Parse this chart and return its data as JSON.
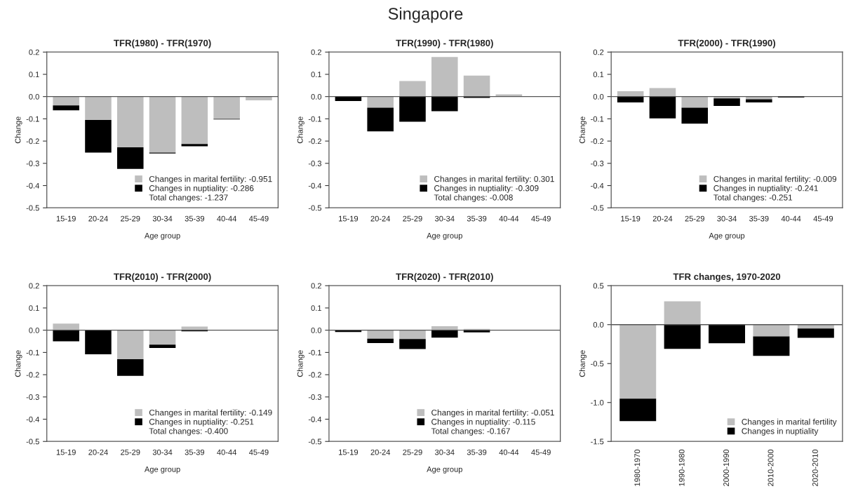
{
  "chart_data": [
    {
      "type": "bar",
      "title": "TFR(1980) - TFR(1970)",
      "xlabel": "Age group",
      "ylabel": "Change",
      "categories": [
        "15-19",
        "20-24",
        "25-29",
        "30-34",
        "35-39",
        "40-44",
        "45-49"
      ],
      "stacked": true,
      "ylim": [
        -0.5,
        0.2
      ],
      "yticks": [
        {
          "value": -0.5,
          "label": "-0.5"
        },
        {
          "value": -0.4,
          "label": "-0.4"
        },
        {
          "value": -0.3,
          "label": "-0.3"
        },
        {
          "value": -0.2,
          "label": "-0.2"
        },
        {
          "value": -0.1,
          "label": "-0.1"
        },
        {
          "value": 0,
          "label": "0.0"
        },
        {
          "value": 0.1,
          "label": "0.1"
        },
        {
          "value": 0.2,
          "label": "0.2"
        }
      ],
      "legend": "bottom right",
      "ref_lines": [
        {
          "axis": "y",
          "value": 0,
          "color": "#555555"
        }
      ],
      "annotations": [
        "Singapore",
        "Total changes: -1.237"
      ],
      "series": [
        {
          "name": "Changes in marital fertility: -0.951",
          "color": "#bebebe",
          "values": [
            -0.04,
            -0.105,
            -0.228,
            -0.252,
            -0.213,
            -0.1,
            -0.017
          ]
        },
        {
          "name": "Changes in nuptiality: -0.286",
          "color": "#000000",
          "values": [
            -0.022,
            -0.147,
            -0.097,
            -0.004,
            -0.01,
            -0.003,
            0
          ]
        }
      ]
    },
    {
      "type": "bar",
      "title": "TFR(1990) - TFR(1980)",
      "xlabel": "Age group",
      "ylabel": "Change",
      "categories": [
        "15-19",
        "20-24",
        "25-29",
        "30-34",
        "35-39",
        "40-44",
        "45-49"
      ],
      "stacked": true,
      "ylim": [
        -0.5,
        0.2
      ],
      "yticks": [
        {
          "value": -0.5,
          "label": "-0.5"
        },
        {
          "value": -0.4,
          "label": "-0.4"
        },
        {
          "value": -0.3,
          "label": "-0.3"
        },
        {
          "value": -0.2,
          "label": "-0.2"
        },
        {
          "value": -0.1,
          "label": "-0.1"
        },
        {
          "value": 0,
          "label": "0.0"
        },
        {
          "value": 0.1,
          "label": "0.1"
        },
        {
          "value": 0.2,
          "label": "0.2"
        }
      ],
      "legend": "bottom right",
      "ref_lines": [
        {
          "axis": "y",
          "value": 0,
          "color": "#555555"
        }
      ],
      "annotations": [
        "Total changes: -0.008"
      ],
      "series": [
        {
          "name": "Changes in marital fertility: 0.301",
          "color": "#bebebe",
          "values": [
            0,
            -0.05,
            0.07,
            0.178,
            0.094,
            0.01,
            0
          ]
        },
        {
          "name": "Changes in nuptiality: -0.309",
          "color": "#000000",
          "values": [
            -0.02,
            -0.106,
            -0.113,
            -0.066,
            -0.006,
            0,
            0
          ]
        }
      ]
    },
    {
      "type": "bar",
      "title": "TFR(2000) - TFR(1990)",
      "xlabel": "Age group",
      "ylabel": "Change",
      "categories": [
        "15-19",
        "20-24",
        "25-29",
        "30-34",
        "35-39",
        "40-44",
        "45-49"
      ],
      "stacked": true,
      "ylim": [
        -0.5,
        0.2
      ],
      "yticks": [
        {
          "value": -0.5,
          "label": "-0.5"
        },
        {
          "value": -0.4,
          "label": "-0.4"
        },
        {
          "value": -0.3,
          "label": "-0.3"
        },
        {
          "value": -0.2,
          "label": "-0.2"
        },
        {
          "value": -0.1,
          "label": "-0.1"
        },
        {
          "value": 0,
          "label": "0.0"
        },
        {
          "value": 0.1,
          "label": "0.1"
        },
        {
          "value": 0.2,
          "label": "0.2"
        }
      ],
      "legend": "bottom right",
      "ref_lines": [
        {
          "axis": "y",
          "value": 0,
          "color": "#555555"
        }
      ],
      "annotations": [
        "Total changes: -0.251"
      ],
      "series": [
        {
          "name": "Changes in marital fertility: -0.009",
          "color": "#bebebe",
          "values": [
            0.024,
            0.038,
            -0.05,
            -0.008,
            -0.012,
            null,
            0
          ]
        },
        {
          "name": "Changes in nuptiality: -0.241",
          "color": "#000000",
          "values": [
            -0.026,
            -0.098,
            -0.072,
            -0.034,
            -0.014,
            -0.004,
            0
          ]
        }
      ]
    },
    {
      "type": "bar",
      "title": "TFR(2010) - TFR(2000)",
      "xlabel": "Age group",
      "ylabel": "Change",
      "categories": [
        "15-19",
        "20-24",
        "25-29",
        "30-34",
        "35-39",
        "40-44",
        "45-49"
      ],
      "stacked": true,
      "ylim": [
        -0.5,
        0.2
      ],
      "yticks": [
        {
          "value": -0.5,
          "label": "-0.5"
        },
        {
          "value": -0.4,
          "label": "-0.4"
        },
        {
          "value": -0.3,
          "label": "-0.3"
        },
        {
          "value": -0.2,
          "label": "-0.2"
        },
        {
          "value": -0.1,
          "label": "-0.1"
        },
        {
          "value": 0,
          "label": "0.0"
        },
        {
          "value": 0.1,
          "label": "0.1"
        },
        {
          "value": 0.2,
          "label": "0.2"
        }
      ],
      "legend": "bottom right",
      "ref_lines": [
        {
          "axis": "y",
          "value": 0,
          "color": "#555555"
        }
      ],
      "annotations": [
        "Total changes: -0.400"
      ],
      "series": [
        {
          "name": "Changes in marital fertility: -0.149",
          "color": "#bebebe",
          "values": [
            0.03,
            0,
            -0.13,
            -0.065,
            0.016,
            0,
            0
          ]
        },
        {
          "name": "Changes in nuptiality: -0.251",
          "color": "#000000",
          "values": [
            -0.05,
            -0.108,
            -0.075,
            -0.015,
            -0.005,
            0,
            0
          ]
        }
      ]
    },
    {
      "type": "bar",
      "title": "TFR(2020) - TFR(2010)",
      "xlabel": "Age group",
      "ylabel": "Change",
      "categories": [
        "15-19",
        "20-24",
        "25-29",
        "30-34",
        "35-39",
        "40-44",
        "45-49"
      ],
      "stacked": true,
      "ylim": [
        -0.5,
        0.2
      ],
      "yticks": [
        {
          "value": -0.5,
          "label": "-0.5"
        },
        {
          "value": -0.4,
          "label": "-0.4"
        },
        {
          "value": -0.3,
          "label": "-0.3"
        },
        {
          "value": -0.2,
          "label": "-0.2"
        },
        {
          "value": -0.1,
          "label": "-0.1"
        },
        {
          "value": 0,
          "label": "0.0"
        },
        {
          "value": 0.1,
          "label": "0.1"
        },
        {
          "value": 0.2,
          "label": "0.2"
        }
      ],
      "legend": "bottom right",
      "ref_lines": [
        {
          "axis": "y",
          "value": 0,
          "color": "#555555"
        }
      ],
      "annotations": [
        "Total changes: -0.167"
      ],
      "series": [
        {
          "name": "Changes in marital fertility: -0.051",
          "color": "#bebebe",
          "values": [
            null,
            -0.038,
            -0.04,
            0.018,
            0.006,
            null,
            0
          ]
        },
        {
          "name": "Changes in nuptiality: -0.115",
          "color": "#000000",
          "values": [
            -0.008,
            -0.02,
            -0.045,
            -0.033,
            -0.01,
            0,
            0
          ]
        }
      ]
    },
    {
      "type": "bar",
      "title": "TFR changes, 1970-2020",
      "ylabel": "Change",
      "categories": [
        "1980-1970",
        "1990-1980",
        "2000-1990",
        "2010-2000",
        "2020-2010"
      ],
      "stacked": true,
      "ylim": [
        -1.5,
        0.5
      ],
      "yticks": [
        {
          "value": -1.5,
          "label": "-1.5"
        },
        {
          "value": -1.0,
          "label": "-1.0"
        },
        {
          "value": -0.5,
          "label": "-0.5"
        },
        {
          "value": 0,
          "label": "0.0"
        },
        {
          "value": 0.5,
          "label": "0.5"
        }
      ],
      "legend": "bottom right",
      "ref_lines": [
        {
          "axis": "y",
          "value": 0,
          "color": "#555555"
        }
      ],
      "series": [
        {
          "name": "Changes in marital fertility",
          "color": "#bebebe",
          "values": [
            -0.95,
            0.3,
            null,
            -0.15,
            -0.05
          ]
        },
        {
          "name": "Changes in nuptiality",
          "color": "#000000",
          "values": [
            -0.29,
            -0.31,
            -0.24,
            -0.25,
            -0.12
          ]
        }
      ]
    }
  ]
}
